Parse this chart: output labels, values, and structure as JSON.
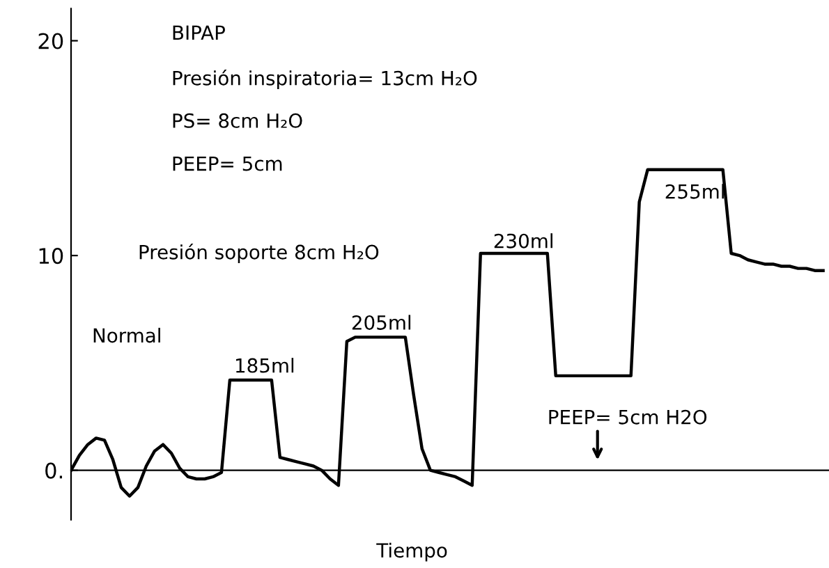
{
  "chart_data": {
    "type": "line",
    "xlabel": "Tiempo",
    "categories": [
      null,
      null,
      null,
      null,
      null,
      null,
      null,
      null,
      null,
      null,
      null,
      null,
      null,
      null,
      null,
      null,
      null,
      null,
      null,
      null,
      null,
      null,
      null,
      null,
      null,
      null,
      null,
      null,
      null,
      null,
      null,
      null,
      null,
      null,
      null,
      null,
      null,
      null,
      null,
      null,
      null,
      null,
      null,
      null,
      null,
      null,
      null,
      null,
      null,
      null,
      null,
      null,
      null,
      null,
      null,
      null,
      null,
      null,
      null,
      null,
      null,
      null,
      null,
      null,
      null,
      null,
      null,
      null,
      null,
      null,
      null,
      null,
      null,
      null,
      null,
      null,
      null,
      null,
      null,
      null,
      null,
      null,
      null,
      null,
      null,
      null,
      null,
      null,
      null,
      null,
      null
    ],
    "series": [
      {
        "color": "#000000",
        "values": [
          0.0,
          0.7,
          1.2,
          1.5,
          1.4,
          0.5,
          -0.8,
          -1.2,
          -0.8,
          0.2,
          0.9,
          1.2,
          0.8,
          0.1,
          -0.3,
          -0.4,
          -0.4,
          -0.3,
          -0.1,
          4.2,
          4.2,
          4.2,
          4.2,
          4.2,
          4.2,
          0.6,
          0.5,
          0.4,
          0.3,
          0.2,
          0.0,
          -0.4,
          -0.7,
          6.0,
          6.2,
          6.2,
          6.2,
          6.2,
          6.2,
          6.2,
          6.2,
          3.5,
          1.0,
          0.0,
          -0.1,
          -0.2,
          -0.3,
          -0.5,
          -0.7,
          10.1,
          10.1,
          10.1,
          10.1,
          10.1,
          10.1,
          10.1,
          10.1,
          10.1,
          4.4,
          4.4,
          4.4,
          4.4,
          4.4,
          4.4,
          4.4,
          4.4,
          4.4,
          4.4,
          12.5,
          14.0,
          14.0,
          14.0,
          14.0,
          14.0,
          14.0,
          14.0,
          14.0,
          14.0,
          14.0,
          10.1,
          10.0,
          9.8,
          9.7,
          9.6,
          9.6,
          9.5,
          9.5,
          9.4,
          9.4,
          9.3,
          9.3
        ]
      }
    ],
    "ylim": [
      -2.3,
      21.5
    ],
    "yticks": [
      {
        "value": 0,
        "label": "0."
      },
      10,
      20
    ],
    "legend": false,
    "marker": "none",
    "line_style": "solid",
    "annotations": [
      "BIPAP",
      "Presión inspiratoria= 13cm H₂O",
      "PS= 8cm H₂O",
      "PEEP= 5cm",
      "Presión soporte 8cm H₂O",
      "Normal",
      "185ml",
      "205ml",
      "230ml",
      "255ml",
      "PEEP= 5cm H2O"
    ]
  }
}
